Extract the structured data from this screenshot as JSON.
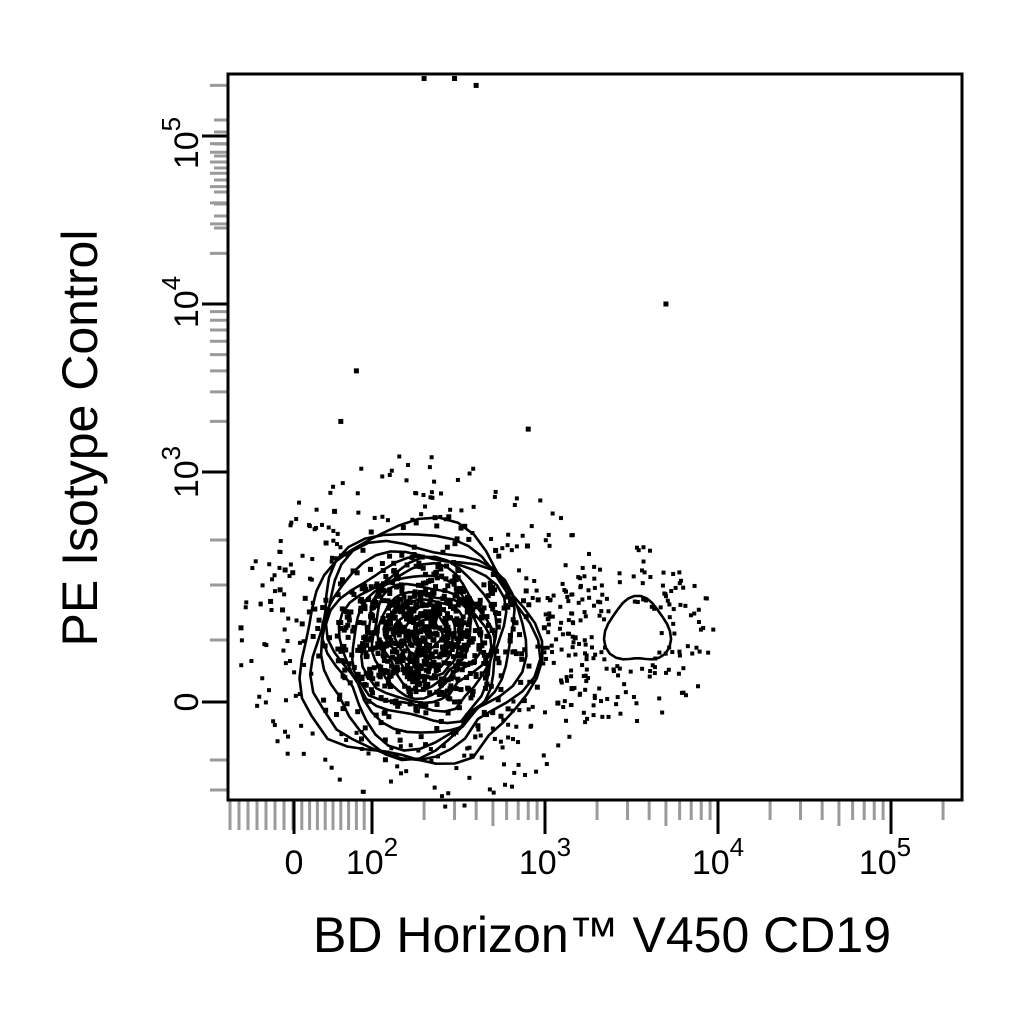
{
  "chart_data": {
    "type": "contour",
    "xlabel": "BD Horizon™ V450  CD19",
    "ylabel": "PE  Isotype Control",
    "x_scale": "biexponential",
    "y_scale": "biexponential",
    "x_ticks": [
      {
        "base": "0",
        "exp": ""
      },
      {
        "base": "10",
        "exp": "2"
      },
      {
        "base": "10",
        "exp": "3"
      },
      {
        "base": "10",
        "exp": "4"
      },
      {
        "base": "10",
        "exp": "5"
      }
    ],
    "y_ticks": [
      {
        "base": "0",
        "exp": ""
      },
      {
        "base": "10",
        "exp": "3"
      },
      {
        "base": "10",
        "exp": "4"
      },
      {
        "base": "10",
        "exp": "5"
      }
    ],
    "populations": [
      {
        "name": "",
        "center_x": 200,
        "center_y": 300
      },
      {
        "name": "",
        "center_x": 3000,
        "center_y": 300
      }
    ],
    "outlier_events": [
      [
        200,
        220000
      ],
      [
        300,
        220000
      ],
      [
        400,
        200000
      ],
      [
        5000,
        10000
      ],
      [
        80,
        4000
      ],
      [
        60,
        2000
      ],
      [
        800,
        1800
      ]
    ],
    "grid": false,
    "legend": "none"
  }
}
